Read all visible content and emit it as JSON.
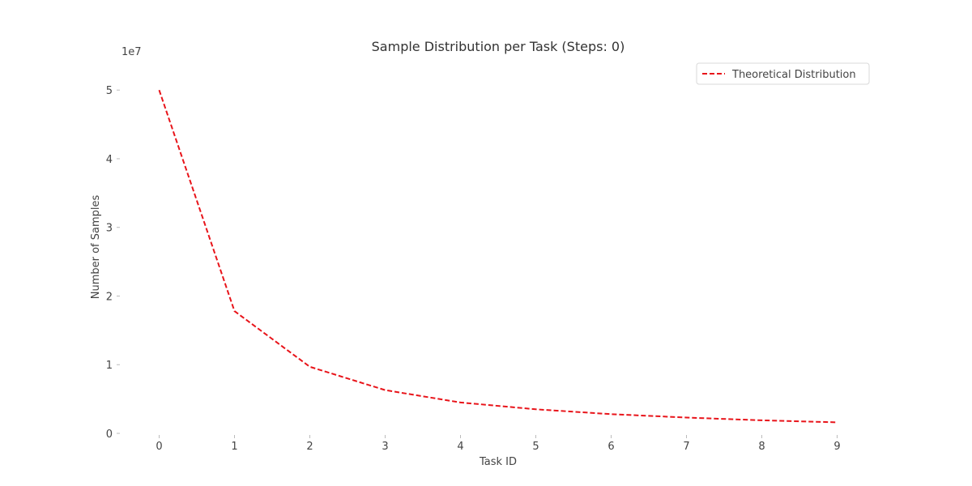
{
  "chart_data": {
    "type": "line",
    "title": "Sample Distribution per Task (Steps: 0)",
    "xlabel": "Task ID",
    "ylabel": "Number of Samples",
    "y_offset_label": "1e7",
    "x": [
      0,
      1,
      2,
      3,
      4,
      5,
      6,
      7,
      8,
      9
    ],
    "x_tick_labels": [
      "0",
      "1",
      "2",
      "3",
      "4",
      "5",
      "6",
      "7",
      "8",
      "9"
    ],
    "y_ticks": [
      0,
      1,
      2,
      3,
      4,
      5
    ],
    "y_tick_labels": [
      "0",
      "1",
      "2",
      "3",
      "4",
      "5"
    ],
    "xlim": [
      -0.5,
      9.5
    ],
    "ylim": [
      0,
      5.25
    ],
    "grid": false,
    "legend": "top-right",
    "series": [
      {
        "name": "Theoretical Distribution",
        "values": [
          5.0,
          1.78,
          0.97,
          0.63,
          0.45,
          0.35,
          0.28,
          0.23,
          0.19,
          0.16
        ],
        "color": "#e8141a",
        "style": "dashed"
      }
    ]
  }
}
